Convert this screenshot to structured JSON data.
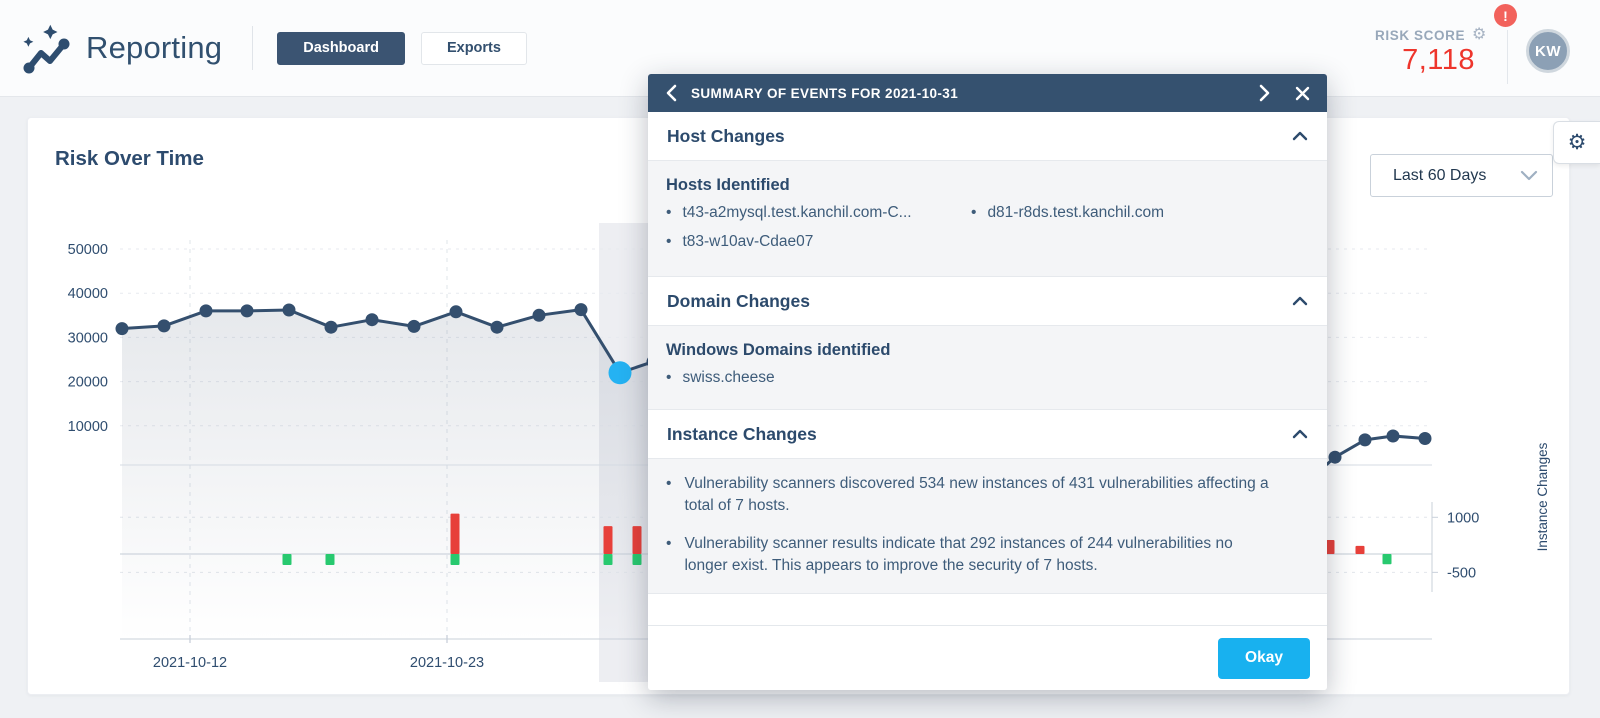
{
  "header": {
    "app_title": "Reporting",
    "nav": [
      {
        "label": "Dashboard"
      },
      {
        "label": "Exports"
      }
    ],
    "risk_score": {
      "label": "RISK SCORE",
      "value": "7,118",
      "alert": "!"
    },
    "avatar_initials": "KW"
  },
  "toolbar": {
    "date_range": "Last 60 Days"
  },
  "chart_card": {
    "title": "Risk Over Time"
  },
  "icons": {
    "gear": "⚙",
    "bullet": "•"
  },
  "modal": {
    "title": "SUMMARY OF EVENTS FOR 2021-10-31",
    "host_changes": {
      "title": "Host Changes",
      "subtitle": "Hosts Identified",
      "col1": [
        "t43-a2mysql.test.kanchil.com-C...",
        "t83-w10av-Cdae07"
      ],
      "col2": [
        "d81-r8ds.test.kanchil.com"
      ]
    },
    "domain_changes": {
      "title": "Domain Changes",
      "subtitle": "Windows Domains identified",
      "items": [
        "swiss.cheese"
      ]
    },
    "instance_changes": {
      "title": "Instance Changes",
      "bullets": [
        "Vulnerability scanners discovered 534 new instances of 431 vulnerabilities affecting a total of 7 hosts.",
        "Vulnerability scanner results indicate that 292 instances of 244 vulnerabilities no longer exist. This appears to improve the security of 7 hosts."
      ]
    },
    "okay_label": "Okay"
  },
  "chart_data": {
    "type": "line+bar",
    "title": "Risk Over Time",
    "date_range": "Last 60 Days",
    "left_axis": {
      "ticks": [
        50000,
        40000,
        30000,
        20000,
        10000
      ],
      "range": [
        0,
        55000
      ]
    },
    "bottom_axis": {
      "visible_tick_labels": [
        "2021-10-12",
        "2021-10-23"
      ]
    },
    "right_axis": {
      "label": "Instance Changes",
      "ticks": [
        1000,
        -500
      ]
    },
    "risk_series": {
      "name": "Risk",
      "highlight_index": 12,
      "highlight": {
        "date": "2021-10-31",
        "value": 22000
      },
      "visible_points": [
        {
          "date": "2021-10-07",
          "value": 32000
        },
        {
          "date": "2021-10-09",
          "value": 32600
        },
        {
          "date": "2021-10-11",
          "value": 36000
        },
        {
          "date": "2021-10-13",
          "value": 36000
        },
        {
          "date": "2021-10-15",
          "value": 36200
        },
        {
          "date": "2021-10-17",
          "value": 32300
        },
        {
          "date": "2021-10-19",
          "value": 34000
        },
        {
          "date": "2021-10-21",
          "value": 32500
        },
        {
          "date": "2021-10-23",
          "value": 35800
        },
        {
          "date": "2021-10-25",
          "value": 32300
        },
        {
          "date": "2021-10-27",
          "value": 35000
        },
        {
          "date": "2021-10-29",
          "value": 36300
        },
        {
          "date": "2021-10-31",
          "value": 22000
        },
        {
          "date": "2021-11-02",
          "value": 24500
        }
      ],
      "right_visible_values": [
        2900,
        6800,
        7700,
        7118
      ]
    },
    "instance_changes_bars": {
      "visible_bars": [
        {
          "added": 0,
          "removed": -300
        },
        {
          "added": 0,
          "removed": -300
        },
        {
          "added": 1100,
          "removed": -300
        },
        {
          "added": 760,
          "removed": -300
        },
        {
          "added": 760,
          "removed": -300
        },
        {
          "added": 380,
          "removed": 0
        },
        {
          "added": 220,
          "removed": 0
        },
        {
          "added": 0,
          "removed": -280
        }
      ]
    },
    "colors": {
      "line": "#344f6e",
      "highlight_dot": "#25b2f2",
      "added": "#e7403a",
      "removed": "#28c96f",
      "axis_text": "#2f4d6f"
    }
  }
}
